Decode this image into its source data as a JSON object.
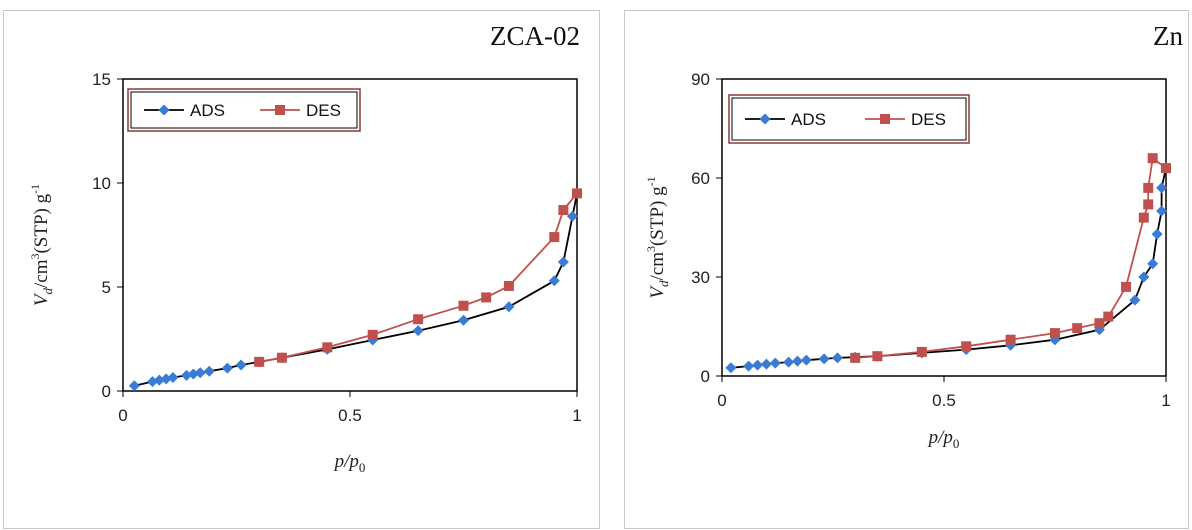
{
  "chart_data": [
    {
      "type": "line",
      "title": "ZCA-02",
      "xlabel": "p/p",
      "xlabel_sub": "0",
      "ylabel_parts": [
        "V",
        "d",
        "/cm",
        "3",
        "(STP) g",
        "-1"
      ],
      "xlim": [
        0,
        1
      ],
      "ylim": [
        0,
        15
      ],
      "xticks": [
        0,
        0.5,
        1
      ],
      "xtick_labels": [
        "0",
        "0.5",
        "1"
      ],
      "yticks": [
        0,
        5,
        10,
        15
      ],
      "ytick_labels": [
        "0",
        "5",
        "10",
        "15"
      ],
      "legend_position": "top-left",
      "series": [
        {
          "name": "ADS",
          "color": "#000000",
          "marker": "diamond",
          "marker_color": "#3a7bd5",
          "x": [
            0.025,
            0.065,
            0.08,
            0.095,
            0.11,
            0.14,
            0.155,
            0.17,
            0.19,
            0.23,
            0.26,
            0.3,
            0.35,
            0.45,
            0.55,
            0.65,
            0.75,
            0.85,
            0.95,
            0.97,
            0.99,
            1.0
          ],
          "y": [
            0.25,
            0.45,
            0.52,
            0.58,
            0.65,
            0.75,
            0.82,
            0.88,
            0.95,
            1.1,
            1.25,
            1.4,
            1.6,
            2.0,
            2.45,
            2.9,
            3.4,
            4.05,
            5.3,
            6.2,
            8.4,
            9.5
          ]
        },
        {
          "name": "DES",
          "color": "#c0504d",
          "marker": "square",
          "marker_color": "#c0504d",
          "x": [
            1.0,
            0.97,
            0.95,
            0.85,
            0.8,
            0.75,
            0.65,
            0.55,
            0.45,
            0.35,
            0.3
          ],
          "y": [
            9.5,
            8.7,
            7.4,
            5.05,
            4.5,
            4.1,
            3.45,
            2.7,
            2.1,
            1.6,
            1.4
          ]
        }
      ]
    },
    {
      "type": "line",
      "title": "Zn",
      "xlabel": "p/p",
      "xlabel_sub": "0",
      "ylabel_parts": [
        "V",
        "d",
        "/cm",
        "3",
        "(STP) g",
        "-1"
      ],
      "xlim": [
        0,
        1
      ],
      "ylim": [
        0,
        90
      ],
      "xticks": [
        0,
        0.5,
        1
      ],
      "xtick_labels": [
        "0",
        "0.5",
        "1"
      ],
      "yticks": [
        0,
        30,
        60,
        90
      ],
      "ytick_labels": [
        "0",
        "30",
        "60",
        "90"
      ],
      "legend_position": "top-left",
      "series": [
        {
          "name": "ADS",
          "color": "#000000",
          "marker": "diamond",
          "marker_color": "#3a7bd5",
          "x": [
            0.02,
            0.06,
            0.08,
            0.1,
            0.12,
            0.15,
            0.17,
            0.19,
            0.23,
            0.26,
            0.3,
            0.35,
            0.45,
            0.55,
            0.65,
            0.75,
            0.85,
            0.93,
            0.95,
            0.97,
            0.98,
            0.99,
            0.99,
            1.0
          ],
          "y": [
            2.5,
            3.0,
            3.3,
            3.6,
            3.9,
            4.2,
            4.5,
            4.8,
            5.2,
            5.5,
            5.7,
            6.0,
            7.0,
            8.0,
            9.3,
            11.0,
            14.0,
            23.0,
            30.0,
            34.0,
            43.0,
            50.0,
            57.0,
            63.0
          ]
        },
        {
          "name": "DES",
          "color": "#c0504d",
          "marker": "square",
          "marker_color": "#c0504d",
          "x": [
            1.0,
            0.97,
            0.96,
            0.96,
            0.95,
            0.91,
            0.87,
            0.85,
            0.8,
            0.75,
            0.65,
            0.55,
            0.45,
            0.35,
            0.3
          ],
          "y": [
            63.0,
            66.0,
            57.0,
            52.0,
            48.0,
            27.0,
            18.0,
            16.0,
            14.5,
            13.0,
            11.0,
            9.0,
            7.3,
            6.0,
            5.5
          ]
        }
      ]
    }
  ]
}
